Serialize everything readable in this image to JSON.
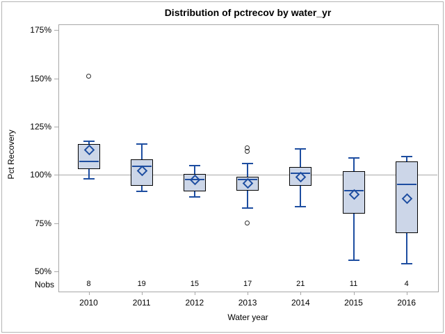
{
  "chart_data": {
    "type": "boxplot",
    "title": "Distribution of pctrecov by water_yr",
    "xlabel": "Water year",
    "ylabel": "Pct Recovery",
    "nobs_label": "Nobs",
    "y_tick_labels": [
      "175%",
      "150%",
      "125%",
      "100%",
      "75%",
      "50%"
    ],
    "y_tick_values": [
      175,
      150,
      125,
      100,
      75,
      50
    ],
    "ylim": [
      40,
      178
    ],
    "reference_line": 100,
    "grid": false,
    "legend_position": "none",
    "categories": [
      "2010",
      "2011",
      "2012",
      "2013",
      "2014",
      "2015",
      "2016"
    ],
    "series": [
      {
        "year": "2010",
        "nobs": 8,
        "whisker_low": 98,
        "q1": 103,
        "median": 107,
        "q3": 116,
        "whisker_high": 117.5,
        "mean": 113,
        "outliers": [
          151
        ]
      },
      {
        "year": "2011",
        "nobs": 19,
        "whisker_low": 91.5,
        "q1": 94.5,
        "median": 104.5,
        "q3": 108,
        "whisker_high": 116,
        "mean": 102.5,
        "outliers": []
      },
      {
        "year": "2012",
        "nobs": 15,
        "whisker_low": 88.5,
        "q1": 91.5,
        "median": 97.5,
        "q3": 100.5,
        "whisker_high": 105,
        "mean": 97.5,
        "outliers": []
      },
      {
        "year": "2013",
        "nobs": 17,
        "whisker_low": 83,
        "q1": 92,
        "median": 97.5,
        "q3": 99,
        "whisker_high": 106,
        "mean": 96,
        "outliers": [
          114,
          112,
          75
        ]
      },
      {
        "year": "2014",
        "nobs": 21,
        "whisker_low": 83.5,
        "q1": 94.5,
        "median": 101,
        "q3": 104,
        "whisker_high": 113.5,
        "mean": 99,
        "outliers": []
      },
      {
        "year": "2015",
        "nobs": 11,
        "whisker_low": 56,
        "q1": 80,
        "median": 92,
        "q3": 102,
        "whisker_high": 109,
        "mean": 90,
        "outliers": []
      },
      {
        "year": "2016",
        "nobs": 4,
        "whisker_low": 54,
        "q1": 70,
        "median": 95,
        "q3": 107,
        "whisker_high": 109.5,
        "mean": 88,
        "outliers": []
      }
    ],
    "colors": {
      "box_fill": "#ccd6e8",
      "box_border": "#000000",
      "whisker": "#1d4da0",
      "median": "#1d4da0",
      "mean_marker": "#1d4da0",
      "outlier": "#2e2e2e",
      "axis": "#a7a7a7",
      "reference_line": "#a9a9a9",
      "text": "#000000"
    }
  }
}
